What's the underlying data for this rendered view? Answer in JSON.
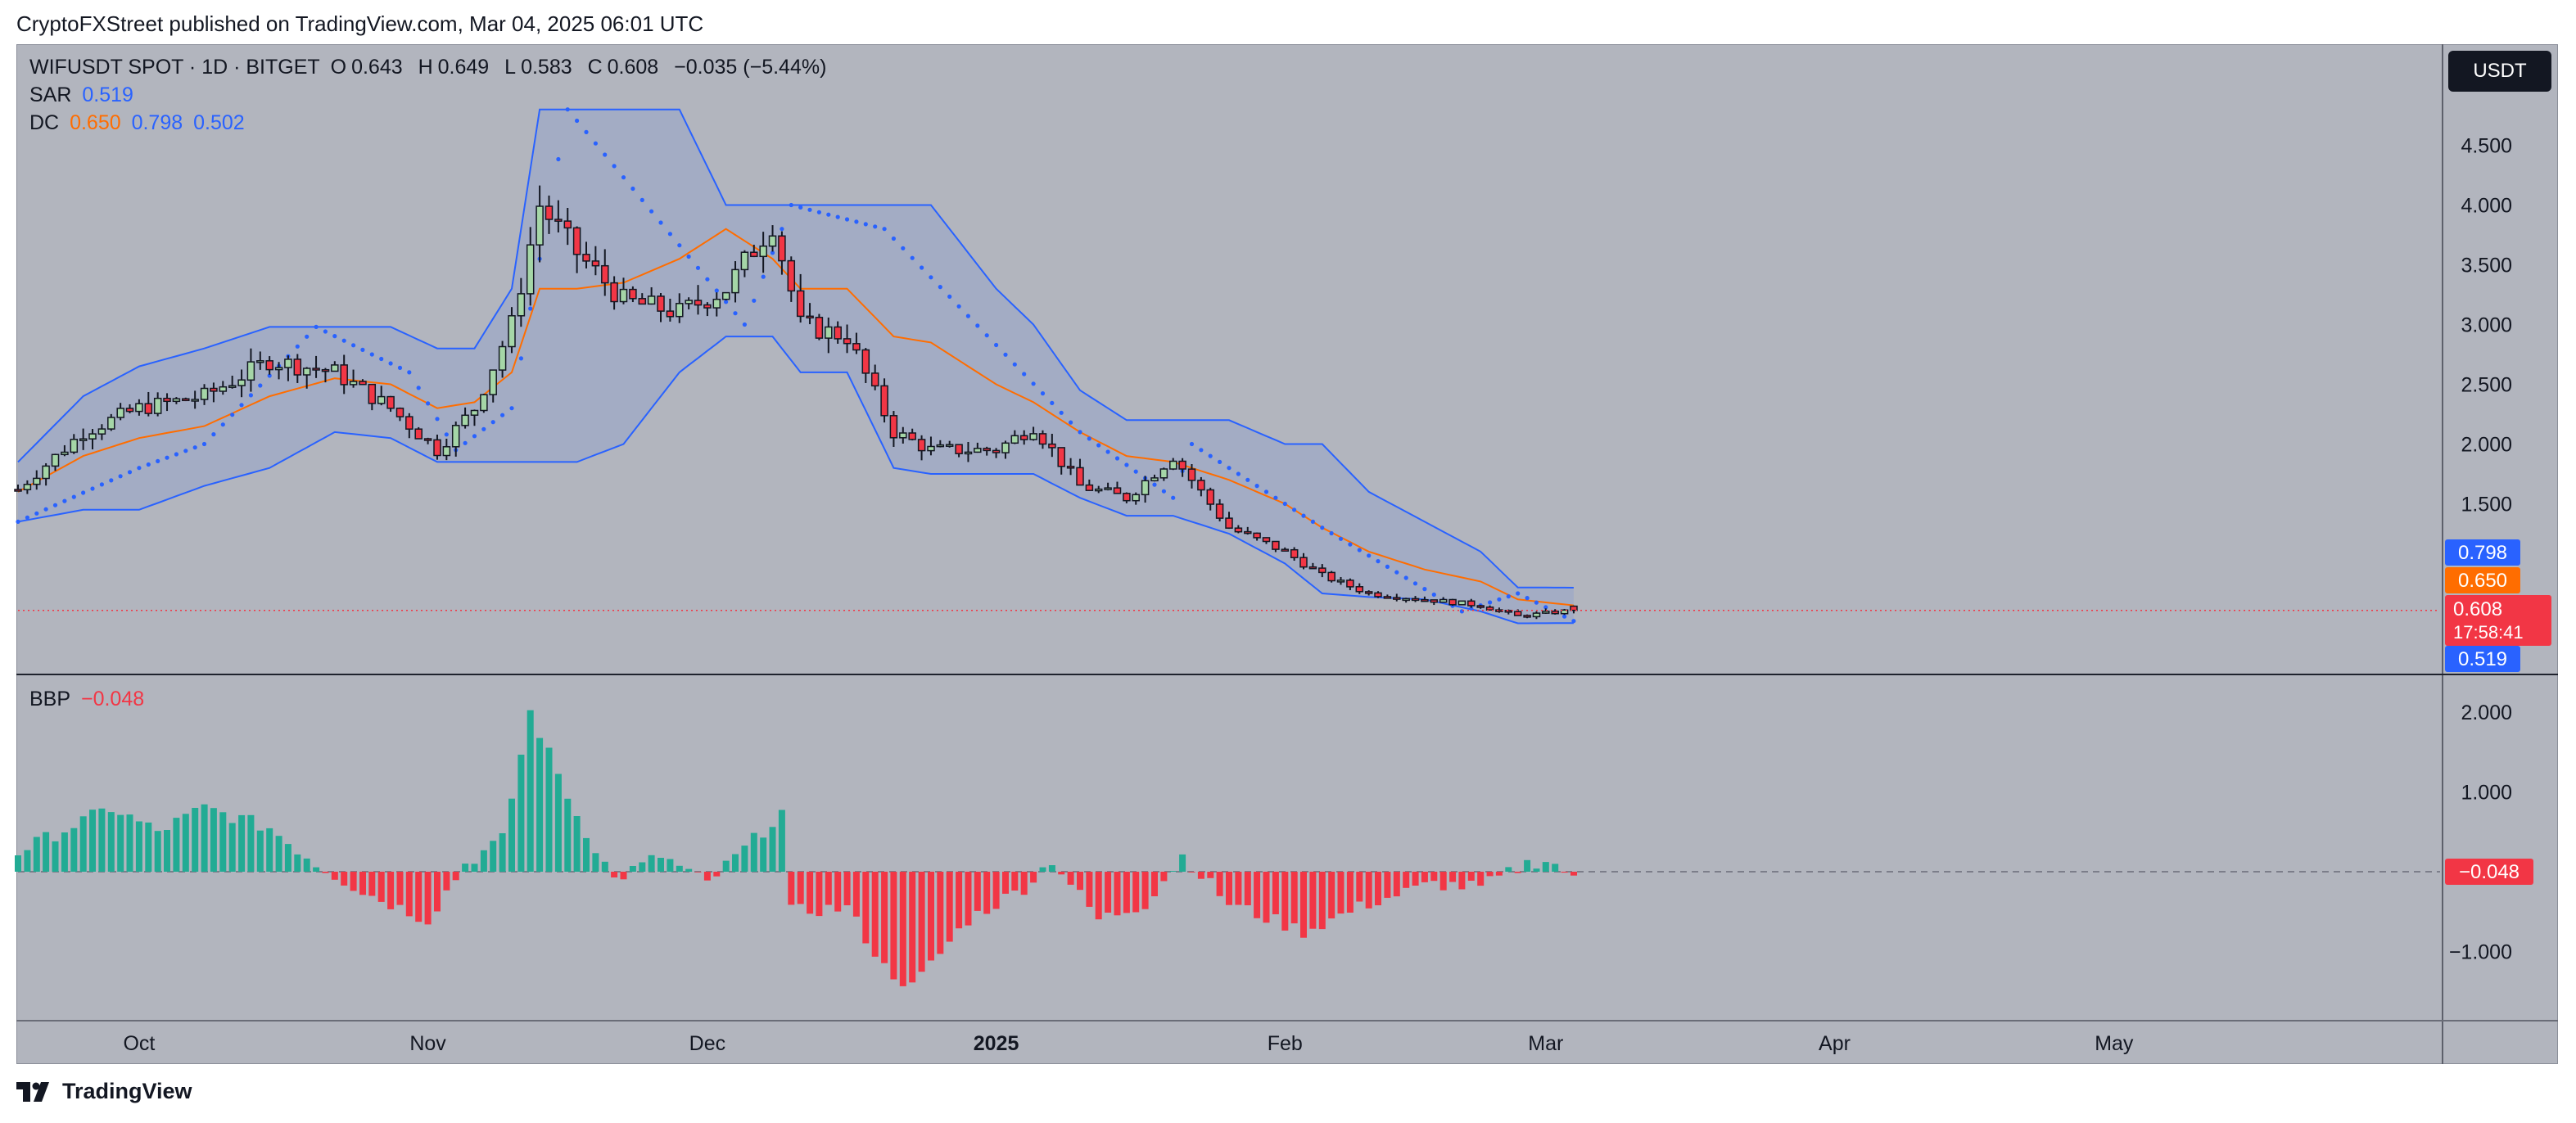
{
  "header": {
    "publisher": "CryptoFXStreet published on TradingView.com, Mar 04, 2025 06:01 UTC"
  },
  "legend": {
    "symbol": "WIFUSDT SPOT · 1D · BITGET",
    "open_label": "O",
    "open": "0.643",
    "high_label": "H",
    "high": "0.649",
    "low_label": "L",
    "low": "0.583",
    "close_label": "C",
    "close": "0.608",
    "change": "−0.035 (−5.44%)",
    "sar_label": "SAR",
    "sar_value": "0.519",
    "dc_label": "DC",
    "dc_mid": "0.650",
    "dc_upper": "0.798",
    "dc_lower": "0.502",
    "bbp_label": "BBP",
    "bbp_value": "−0.048"
  },
  "currency_button": "USDT",
  "badges": {
    "dc_upper": "0.798",
    "dc_mid": "0.650",
    "close": "0.608",
    "countdown": "17:58:41",
    "sar": "0.519",
    "bbp": "−0.048"
  },
  "brand": "TradingView",
  "colors": {
    "up": "#22ab94",
    "down": "#f23645",
    "upper_lower": "#2962ff",
    "basis": "#ff6d00",
    "fill": "rgba(41,98,255,0.10)",
    "bg": "#b2b5be"
  },
  "chart_data": [
    {
      "type": "candlestick",
      "title": "WIFUSDT SPOT · 1D · BITGET",
      "x_axis": {
        "type": "date",
        "tick_labels": [
          "Oct",
          "Nov",
          "Dec",
          "2025",
          "Feb",
          "Mar",
          "Apr",
          "May"
        ],
        "tick_dates": [
          "2024-10-01",
          "2024-11-01",
          "2024-12-01",
          "2025-01-01",
          "2025-02-01",
          "2025-03-01",
          "2025-04-01",
          "2025-05-01"
        ],
        "range": [
          "2024-09-18",
          "2025-06-05"
        ]
      },
      "y_axis": {
        "ticks": [
          "4.500",
          "4.000",
          "3.500",
          "3.000",
          "2.500",
          "2.000",
          "1.500"
        ],
        "tick_values": [
          4.5,
          4.0,
          3.5,
          3.0,
          2.5,
          2.0,
          1.5
        ]
      },
      "grid": false,
      "anchors": [
        {
          "date": "2024-09-18",
          "close": 1.62,
          "upper": 1.85,
          "lower": 1.35,
          "basis": 1.6
        },
        {
          "date": "2024-09-25",
          "close": 2.1,
          "upper": 2.4,
          "lower": 1.45,
          "basis": 1.9
        },
        {
          "date": "2024-10-01",
          "close": 2.3,
          "upper": 2.65,
          "lower": 1.45,
          "basis": 2.05
        },
        {
          "date": "2024-10-08",
          "close": 2.4,
          "upper": 2.8,
          "lower": 1.65,
          "basis": 2.15
        },
        {
          "date": "2024-10-15",
          "close": 2.7,
          "upper": 2.98,
          "lower": 1.8,
          "basis": 2.4
        },
        {
          "date": "2024-10-22",
          "close": 2.6,
          "upper": 2.98,
          "lower": 2.1,
          "basis": 2.55
        },
        {
          "date": "2024-10-28",
          "close": 2.3,
          "upper": 2.98,
          "lower": 2.05,
          "basis": 2.5
        },
        {
          "date": "2024-11-02",
          "close": 1.95,
          "upper": 2.8,
          "lower": 1.85,
          "basis": 2.3
        },
        {
          "date": "2024-11-06",
          "close": 2.3,
          "upper": 2.8,
          "lower": 1.85,
          "basis": 2.35
        },
        {
          "date": "2024-11-10",
          "close": 3.0,
          "upper": 3.3,
          "lower": 1.85,
          "basis": 2.6
        },
        {
          "date": "2024-11-13",
          "close": 4.0,
          "upper": 4.8,
          "lower": 1.85,
          "basis": 3.3
        },
        {
          "date": "2024-11-17",
          "close": 3.6,
          "upper": 4.8,
          "lower": 1.85,
          "basis": 3.3
        },
        {
          "date": "2024-11-22",
          "close": 3.2,
          "upper": 4.8,
          "lower": 2.0,
          "basis": 3.35
        },
        {
          "date": "2024-11-28",
          "close": 3.1,
          "upper": 4.8,
          "lower": 2.6,
          "basis": 3.55
        },
        {
          "date": "2024-12-03",
          "close": 3.3,
          "upper": 4.0,
          "lower": 2.9,
          "basis": 3.8
        },
        {
          "date": "2024-12-08",
          "close": 3.85,
          "upper": 4.0,
          "lower": 2.9,
          "basis": 3.55
        },
        {
          "date": "2024-12-11",
          "close": 3.0,
          "upper": 4.0,
          "lower": 2.6,
          "basis": 3.3
        },
        {
          "date": "2024-12-16",
          "close": 2.9,
          "upper": 4.0,
          "lower": 2.6,
          "basis": 3.3
        },
        {
          "date": "2024-12-21",
          "close": 2.1,
          "upper": 4.0,
          "lower": 1.8,
          "basis": 2.9
        },
        {
          "date": "2024-12-25",
          "close": 1.95,
          "upper": 4.0,
          "lower": 1.75,
          "basis": 2.85
        },
        {
          "date": "2025-01-01",
          "close": 1.95,
          "upper": 3.3,
          "lower": 1.75,
          "basis": 2.5
        },
        {
          "date": "2025-01-05",
          "close": 2.15,
          "upper": 3.0,
          "lower": 1.75,
          "basis": 2.35
        },
        {
          "date": "2025-01-10",
          "close": 1.65,
          "upper": 2.45,
          "lower": 1.55,
          "basis": 2.1
        },
        {
          "date": "2025-01-15",
          "close": 1.55,
          "upper": 2.2,
          "lower": 1.4,
          "basis": 1.9
        },
        {
          "date": "2025-01-20",
          "close": 1.9,
          "upper": 2.2,
          "lower": 1.4,
          "basis": 1.85
        },
        {
          "date": "2025-01-26",
          "close": 1.3,
          "upper": 2.2,
          "lower": 1.25,
          "basis": 1.7
        },
        {
          "date": "2025-02-01",
          "close": 1.1,
          "upper": 2.0,
          "lower": 1.0,
          "basis": 1.5
        },
        {
          "date": "2025-02-05",
          "close": 0.9,
          "upper": 2.0,
          "lower": 0.75,
          "basis": 1.3
        },
        {
          "date": "2025-02-10",
          "close": 0.75,
          "upper": 1.6,
          "lower": 0.72,
          "basis": 1.1
        },
        {
          "date": "2025-02-16",
          "close": 0.7,
          "upper": 1.35,
          "lower": 0.7,
          "basis": 0.95
        },
        {
          "date": "2025-02-22",
          "close": 0.65,
          "upper": 1.1,
          "lower": 0.6,
          "basis": 0.85
        },
        {
          "date": "2025-02-26",
          "close": 0.56,
          "upper": 0.8,
          "lower": 0.5,
          "basis": 0.7
        },
        {
          "date": "2025-03-04",
          "close": 0.608,
          "upper": 0.798,
          "lower": 0.502,
          "basis": 0.65
        }
      ],
      "sar_anchors": [
        {
          "date": "2024-09-18",
          "value": 1.35
        },
        {
          "date": "2024-10-01",
          "value": 1.8
        },
        {
          "date": "2024-10-08",
          "value": 2.0
        },
        {
          "date": "2024-10-20",
          "value": 2.98
        },
        {
          "date": "2024-10-26",
          "value": 2.75
        },
        {
          "date": "2024-10-30",
          "value": 2.6
        },
        {
          "date": "2024-11-04",
          "value": 1.95
        },
        {
          "date": "2024-11-10",
          "value": 2.3
        },
        {
          "date": "2024-11-16",
          "value": 4.8
        },
        {
          "date": "2024-12-05",
          "value": 3.0
        },
        {
          "date": "2024-12-10",
          "value": 4.0
        },
        {
          "date": "2024-12-20",
          "value": 3.8
        },
        {
          "date": "2025-01-10",
          "value": 2.1
        },
        {
          "date": "2025-01-20",
          "value": 1.55
        },
        {
          "date": "2025-01-22",
          "value": 2.0
        },
        {
          "date": "2025-02-05",
          "value": 1.3
        },
        {
          "date": "2025-02-20",
          "value": 0.6
        },
        {
          "date": "2025-02-26",
          "value": 0.75
        },
        {
          "date": "2025-03-04",
          "value": 0.519
        }
      ]
    },
    {
      "type": "bar",
      "title": "BBP",
      "y_axis": {
        "ticks": [
          "2.000",
          "1.000",
          "−1.000"
        ],
        "tick_values": [
          2.0,
          1.0,
          -1.0
        ]
      },
      "last_value": -0.048,
      "anchors": [
        {
          "date": "2024-09-18",
          "value": 0.25
        },
        {
          "date": "2024-09-28",
          "value": 0.8
        },
        {
          "date": "2024-10-03",
          "value": 0.5
        },
        {
          "date": "2024-10-08",
          "value": 0.8
        },
        {
          "date": "2024-10-15",
          "value": 0.55
        },
        {
          "date": "2024-10-20",
          "value": 0.1
        },
        {
          "date": "2024-10-25",
          "value": -0.25
        },
        {
          "date": "2024-11-01",
          "value": -0.6
        },
        {
          "date": "2024-11-05",
          "value": 0.1
        },
        {
          "date": "2024-11-09",
          "value": 0.4
        },
        {
          "date": "2024-11-12",
          "value": 2.0
        },
        {
          "date": "2024-11-17",
          "value": 0.7
        },
        {
          "date": "2024-11-21",
          "value": -0.1
        },
        {
          "date": "2024-11-26",
          "value": 0.2
        },
        {
          "date": "2024-12-01",
          "value": -0.15
        },
        {
          "date": "2024-12-06",
          "value": 0.4
        },
        {
          "date": "2024-12-09",
          "value": 0.75
        },
        {
          "date": "2024-12-10",
          "value": -0.5
        },
        {
          "date": "2024-12-16",
          "value": -0.45
        },
        {
          "date": "2024-12-20",
          "value": -1.2
        },
        {
          "date": "2024-12-23",
          "value": -1.45
        },
        {
          "date": "2024-12-29",
          "value": -0.6
        },
        {
          "date": "2025-01-04",
          "value": -0.2
        },
        {
          "date": "2025-01-07",
          "value": 0.15
        },
        {
          "date": "2025-01-12",
          "value": -0.6
        },
        {
          "date": "2025-01-17",
          "value": -0.4
        },
        {
          "date": "2025-01-21",
          "value": 0.2
        },
        {
          "date": "2025-01-26",
          "value": -0.4
        },
        {
          "date": "2025-02-03",
          "value": -0.75
        },
        {
          "date": "2025-02-10",
          "value": -0.4
        },
        {
          "date": "2025-02-17",
          "value": -0.15
        },
        {
          "date": "2025-02-22",
          "value": -0.2
        },
        {
          "date": "2025-02-27",
          "value": 0.1
        },
        {
          "date": "2025-03-01",
          "value": 0.15
        },
        {
          "date": "2025-03-04",
          "value": -0.048
        }
      ]
    }
  ]
}
